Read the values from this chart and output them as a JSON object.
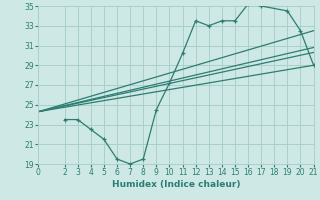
{
  "xlabel": "Humidex (Indice chaleur)",
  "background_color": "#cde8e5",
  "grid_color": "#aad0cc",
  "line_color": "#2e7d72",
  "xlim": [
    0,
    21
  ],
  "ylim": [
    19,
    35
  ],
  "yticks": [
    19,
    21,
    23,
    25,
    27,
    29,
    31,
    33,
    35
  ],
  "xticks": [
    0,
    2,
    3,
    4,
    5,
    6,
    7,
    8,
    9,
    10,
    11,
    12,
    13,
    14,
    15,
    16,
    17,
    18,
    19,
    20,
    21
  ],
  "main_line_x": [
    2,
    3,
    4,
    5,
    6,
    7,
    8,
    9,
    10,
    11,
    12,
    13,
    14,
    15,
    16,
    17,
    19,
    20,
    21
  ],
  "main_line_y": [
    23.5,
    23.5,
    22.5,
    21.5,
    19.5,
    19.0,
    19.5,
    24.5,
    27.2,
    30.2,
    33.5,
    33.0,
    33.5,
    33.5,
    35.2,
    35.0,
    34.5,
    32.5,
    29.0
  ],
  "line1_x": [
    0,
    21
  ],
  "line1_y": [
    24.3,
    32.5
  ],
  "line2_x": [
    0,
    21
  ],
  "line2_y": [
    24.3,
    30.8
  ],
  "line3_x": [
    0,
    21
  ],
  "line3_y": [
    24.3,
    30.3
  ],
  "line4_x": [
    0,
    21
  ],
  "line4_y": [
    24.3,
    29.0
  ]
}
